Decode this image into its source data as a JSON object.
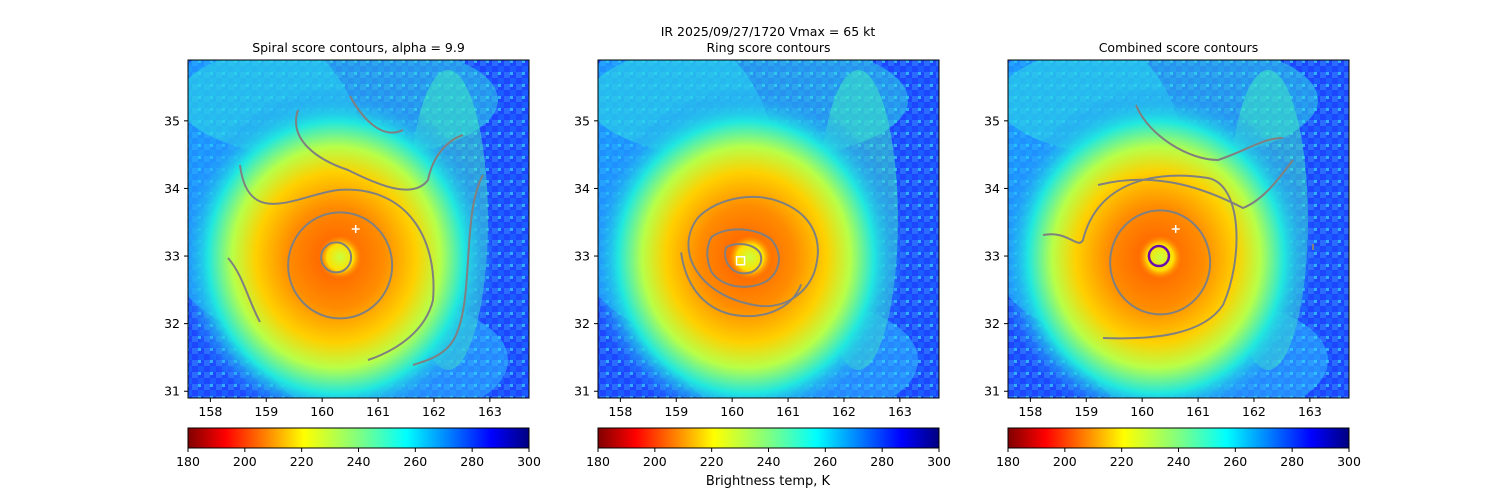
{
  "suptitle": {
    "line1": "IR  2025/09/27/1720    Vmax = 65 kt"
  },
  "colorbar_label": "Brightness temp, K",
  "chart_data": [
    {
      "type": "heatmap",
      "title": "Spiral score contours, alpha =  9.9",
      "xlim": [
        157.6,
        163.7
      ],
      "ylim": [
        30.9,
        35.9
      ],
      "xticks": [
        "158",
        "159",
        "160",
        "161",
        "162",
        "163"
      ],
      "yticks": [
        "31",
        "32",
        "33",
        "34",
        "35"
      ],
      "colorbar": {
        "range": [
          180,
          300
        ],
        "ticks": [
          "180",
          "200",
          "220",
          "240",
          "260",
          "280",
          "300"
        ],
        "colormap": "jet_r"
      },
      "center": [
        160.25,
        32.98
      ],
      "marker": {
        "symbol": "+",
        "lon": 160.6,
        "lat": 33.4,
        "color": "#ffffff"
      },
      "contour_color": "#808080"
    },
    {
      "type": "heatmap",
      "title": "Ring score contours",
      "xlim": [
        157.6,
        163.7
      ],
      "ylim": [
        30.9,
        35.9
      ],
      "xticks": [
        "158",
        "159",
        "160",
        "161",
        "162",
        "163"
      ],
      "yticks": [
        "31",
        "32",
        "33",
        "34",
        "35"
      ],
      "colorbar": {
        "range": [
          180,
          300
        ],
        "ticks": [
          "180",
          "200",
          "220",
          "240",
          "260",
          "280",
          "300"
        ],
        "colormap": "jet_r"
      },
      "center": [
        160.25,
        32.98
      ],
      "marker": {
        "symbol": "square",
        "lon": 160.15,
        "lat": 32.93,
        "color": "#ffffff"
      },
      "contour_color": "#808080"
    },
    {
      "type": "heatmap",
      "title": "Combined score contours",
      "xlim": [
        157.6,
        163.7
      ],
      "ylim": [
        30.9,
        35.9
      ],
      "xticks": [
        "158",
        "159",
        "160",
        "161",
        "162",
        "163"
      ],
      "yticks": [
        "31",
        "32",
        "33",
        "34",
        "35"
      ],
      "colorbar": {
        "range": [
          180,
          300
        ],
        "ticks": [
          "180",
          "200",
          "220",
          "240",
          "260",
          "280",
          "300"
        ],
        "colormap": "jet_r"
      },
      "center": [
        160.25,
        32.98
      ],
      "marker": {
        "symbol": "+",
        "lon": 160.6,
        "lat": 33.4,
        "color": "#ffffff"
      },
      "circle": {
        "lon": 160.3,
        "lat": 33.0,
        "color": "#6a0dad"
      },
      "contour_color": "#808080"
    }
  ]
}
